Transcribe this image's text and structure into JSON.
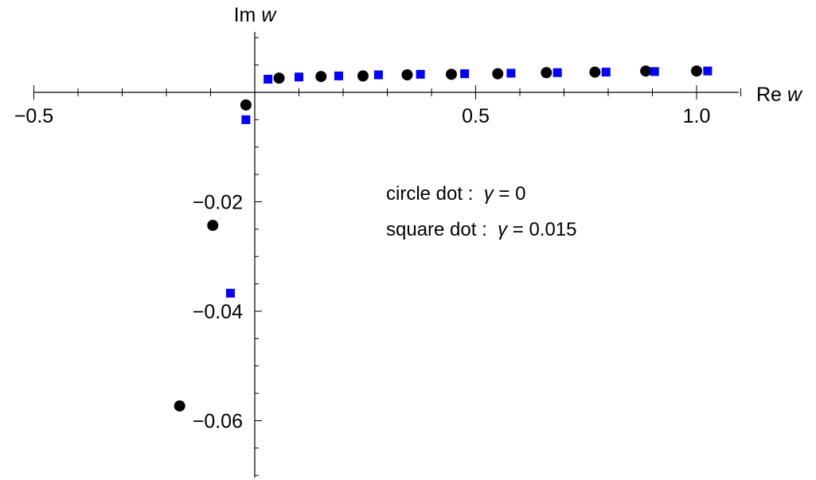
{
  "chart_data": {
    "type": "scatter",
    "xlabel": {
      "prefix": "Re",
      "var": "w"
    },
    "ylabel": {
      "prefix": "Im",
      "var": "w"
    },
    "xlim": [
      -0.5,
      1.1
    ],
    "ylim": [
      -0.07,
      0.01
    ],
    "x_ticks": [
      {
        "value": -0.5,
        "label": "−0.5"
      },
      {
        "value": 0.5,
        "label": "0.5"
      },
      {
        "value": 1.0,
        "label": "1.0"
      }
    ],
    "x_minor_ticks": [
      -0.4,
      -0.3,
      -0.2,
      -0.1,
      0.1,
      0.2,
      0.3,
      0.4,
      0.6,
      0.7,
      0.8,
      0.9,
      1.1
    ],
    "y_ticks": [
      {
        "value": -0.02,
        "label": "−0.02"
      },
      {
        "value": -0.04,
        "label": "−0.04"
      },
      {
        "value": -0.06,
        "label": "−0.06"
      }
    ],
    "y_minor_ticks": [
      0.01,
      0.005,
      -0.005,
      -0.01,
      -0.015,
      -0.025,
      -0.03,
      -0.035,
      -0.045,
      -0.05,
      -0.055,
      -0.065,
      -0.07
    ],
    "annotations": [
      {
        "text": "circle dot :  ",
        "var": "γ",
        "rest": " = 0"
      },
      {
        "text": "square dot :  ",
        "var": "γ",
        "rest": " = 0.015"
      }
    ],
    "series": [
      {
        "marker": "circle",
        "color": "#000000",
        "points": [
          {
            "x": 1.0,
            "y": 0.0039
          },
          {
            "x": 0.885,
            "y": 0.0039
          },
          {
            "x": 0.77,
            "y": 0.0037
          },
          {
            "x": 0.66,
            "y": 0.0036
          },
          {
            "x": 0.55,
            "y": 0.0034
          },
          {
            "x": 0.445,
            "y": 0.0033
          },
          {
            "x": 0.345,
            "y": 0.0032
          },
          {
            "x": 0.245,
            "y": 0.003
          },
          {
            "x": 0.15,
            "y": 0.0029
          },
          {
            "x": 0.055,
            "y": 0.0026
          },
          {
            "x": -0.02,
            "y": -0.0023
          },
          {
            "x": -0.095,
            "y": -0.0243
          },
          {
            "x": -0.17,
            "y": -0.0573
          }
        ]
      },
      {
        "marker": "square",
        "color": "#0000ff",
        "points": [
          {
            "x": 1.025,
            "y": 0.0039
          },
          {
            "x": 0.905,
            "y": 0.0038
          },
          {
            "x": 0.795,
            "y": 0.0037
          },
          {
            "x": 0.685,
            "y": 0.0036
          },
          {
            "x": 0.58,
            "y": 0.0035
          },
          {
            "x": 0.475,
            "y": 0.0034
          },
          {
            "x": 0.375,
            "y": 0.0033
          },
          {
            "x": 0.28,
            "y": 0.0032
          },
          {
            "x": 0.19,
            "y": 0.003
          },
          {
            "x": 0.1,
            "y": 0.0028
          },
          {
            "x": 0.03,
            "y": 0.0024
          },
          {
            "x": -0.02,
            "y": -0.005
          },
          {
            "x": -0.055,
            "y": -0.0367
          }
        ]
      }
    ]
  }
}
